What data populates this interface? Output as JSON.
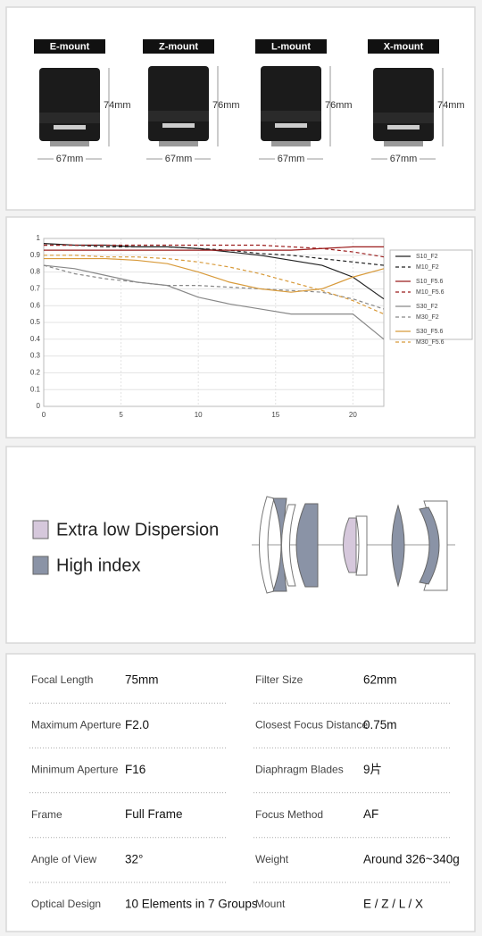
{
  "mounts": [
    {
      "name": "E-mount",
      "height": "74mm",
      "width": "67mm"
    },
    {
      "name": "Z-mount",
      "height": "76mm",
      "width": "67mm"
    },
    {
      "name": "L-mount",
      "height": "76mm",
      "width": "67mm"
    },
    {
      "name": "X-mount",
      "height": "74mm",
      "width": "67mm"
    }
  ],
  "chart_data": {
    "type": "line",
    "x": [
      0,
      2,
      4,
      6,
      8,
      10,
      12,
      14,
      16,
      18,
      20,
      22
    ],
    "xlim": [
      0,
      22
    ],
    "xticks": [
      0,
      5,
      10,
      15,
      20
    ],
    "ylim": [
      0,
      1
    ],
    "yticks": [
      0,
      0.1,
      0.2,
      0.3,
      0.4,
      0.5,
      0.6,
      0.7,
      0.8,
      0.9,
      1
    ],
    "grid": true,
    "series": [
      {
        "name": "S10_F2",
        "color": "#222222",
        "dashed": false,
        "values": [
          0.97,
          0.96,
          0.96,
          0.95,
          0.95,
          0.94,
          0.92,
          0.9,
          0.87,
          0.84,
          0.77,
          0.64
        ]
      },
      {
        "name": "M10_F2",
        "color": "#222222",
        "dashed": true,
        "values": [
          0.96,
          0.96,
          0.95,
          0.95,
          0.95,
          0.94,
          0.93,
          0.91,
          0.9,
          0.88,
          0.86,
          0.84
        ]
      },
      {
        "name": "S10_F5.6",
        "color": "#9b1c1c",
        "dashed": false,
        "values": [
          0.93,
          0.93,
          0.93,
          0.93,
          0.93,
          0.93,
          0.93,
          0.93,
          0.93,
          0.94,
          0.95,
          0.95
        ]
      },
      {
        "name": "M10_F5.6",
        "color": "#9b1c1c",
        "dashed": true,
        "values": [
          0.96,
          0.96,
          0.96,
          0.96,
          0.96,
          0.96,
          0.96,
          0.96,
          0.95,
          0.94,
          0.92,
          0.89
        ]
      },
      {
        "name": "S30_F2",
        "color": "#888888",
        "dashed": false,
        "values": [
          0.84,
          0.82,
          0.78,
          0.74,
          0.72,
          0.65,
          0.61,
          0.58,
          0.55,
          0.55,
          0.55,
          0.4
        ]
      },
      {
        "name": "M30_F2",
        "color": "#888888",
        "dashed": true,
        "values": [
          0.84,
          0.79,
          0.76,
          0.74,
          0.72,
          0.72,
          0.71,
          0.7,
          0.69,
          0.68,
          0.64,
          0.58
        ]
      },
      {
        "name": "S30_F5.6",
        "color": "#d89a3a",
        "dashed": false,
        "values": [
          0.88,
          0.88,
          0.88,
          0.87,
          0.85,
          0.8,
          0.74,
          0.7,
          0.68,
          0.7,
          0.77,
          0.82
        ]
      },
      {
        "name": "M30_F5.6",
        "color": "#d89a3a",
        "dashed": true,
        "values": [
          0.9,
          0.9,
          0.89,
          0.89,
          0.88,
          0.86,
          0.83,
          0.79,
          0.74,
          0.69,
          0.63,
          0.55
        ]
      }
    ]
  },
  "legend": [
    {
      "name": "Extra low Dispersion",
      "color": "#d6c8dc"
    },
    {
      "name": "High index",
      "color": "#8a93a6"
    }
  ],
  "specs": [
    [
      {
        "label": "Focal Length",
        "value": "75mm"
      },
      {
        "label": "Filter Size",
        "value": "62mm"
      }
    ],
    [
      {
        "label": "Maximum Aperture",
        "value": "F2.0"
      },
      {
        "label": "Closest Focus Distance",
        "value": "0.75m"
      }
    ],
    [
      {
        "label": "Minimum Aperture",
        "value": "F16"
      },
      {
        "label": "Diaphragm Blades",
        "value": "9片"
      }
    ],
    [
      {
        "label": "Frame",
        "value": "Full Frame"
      },
      {
        "label": "Focus Method",
        "value": "AF"
      }
    ],
    [
      {
        "label": "Angle of View",
        "value": "32°"
      },
      {
        "label": "Weight",
        "value": "Around 326~340g"
      }
    ],
    [
      {
        "label": "Optical Design",
        "value": "10 Elements in 7 Groups"
      },
      {
        "label": "Mount",
        "value": "E / Z / L / X"
      }
    ]
  ]
}
